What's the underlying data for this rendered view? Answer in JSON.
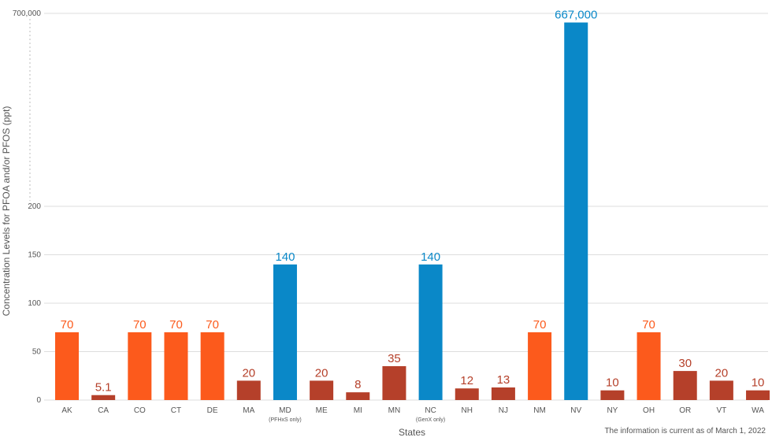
{
  "chart_data": {
    "type": "bar",
    "title": "",
    "xlabel": "States",
    "ylabel": "Concentration Levels for PFOA and/or PFOS (ppt)",
    "note": "The information is current as of March 1, 2022",
    "y_axis_break": true,
    "yticks": [
      0,
      50,
      100,
      150,
      200,
      700000
    ],
    "ytick_labels": [
      "0",
      "50",
      "100",
      "150",
      "200",
      "700,000"
    ],
    "categories": [
      "AK",
      "CA",
      "CO",
      "CT",
      "DE",
      "MA",
      "MD",
      "ME",
      "MI",
      "MN",
      "NC",
      "NH",
      "NJ",
      "NM",
      "NV",
      "NY",
      "OH",
      "OR",
      "VT",
      "WA"
    ],
    "category_notes": {
      "MD": "(PFHxS only)",
      "NC": "(GenX only)"
    },
    "values": [
      70,
      5.1,
      70,
      70,
      70,
      20,
      140,
      20,
      8,
      35,
      140,
      12,
      13,
      70,
      667000,
      10,
      70,
      30,
      20,
      10
    ],
    "value_labels": [
      "70",
      "5.1",
      "70",
      "70",
      "70",
      "20",
      "140",
      "20",
      "8",
      "35",
      "140",
      "12",
      "13",
      "70",
      "667,000",
      "10",
      "70",
      "30",
      "20",
      "10"
    ],
    "colors": [
      "#fc5a1c",
      "#b5402a",
      "#fc5a1c",
      "#fc5a1c",
      "#fc5a1c",
      "#b5402a",
      "#0a88c8",
      "#b5402a",
      "#b5402a",
      "#b5402a",
      "#0a88c8",
      "#b5402a",
      "#b5402a",
      "#fc5a1c",
      "#0a88c8",
      "#b5402a",
      "#fc5a1c",
      "#b5402a",
      "#b5402a",
      "#b5402a"
    ],
    "grid": true,
    "legend": "none"
  }
}
